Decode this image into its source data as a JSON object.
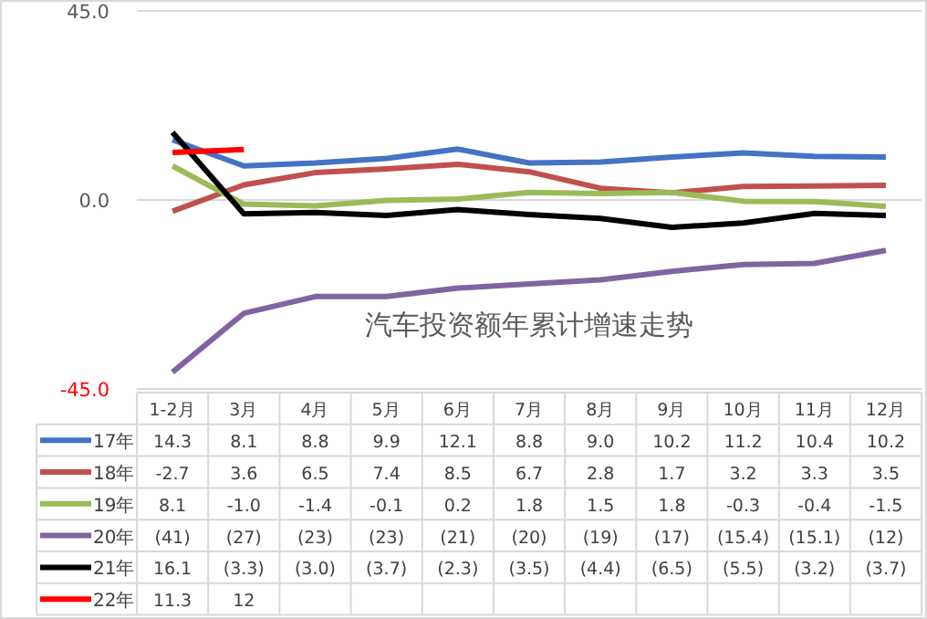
{
  "chart_data": {
    "type": "line",
    "title": "汽车投资额年累计增速走势",
    "categories": [
      "1-2月",
      "3月",
      "4月",
      "5月",
      "6月",
      "7月",
      "8月",
      "9月",
      "10月",
      "11月",
      "12月"
    ],
    "ylim": [
      -45,
      45
    ],
    "yticks": [
      {
        "value": 45,
        "label": "45.0"
      },
      {
        "value": 0,
        "label": "0.0"
      },
      {
        "value": -45,
        "label": "-45.0"
      }
    ],
    "grid": "y",
    "legend": "bottom",
    "series": [
      {
        "name": "17年",
        "color": "#4472c4",
        "values": [
          14.3,
          8.1,
          8.8,
          9.9,
          12.1,
          8.8,
          9.0,
          10.2,
          11.2,
          10.4,
          10.2
        ],
        "value_labels": [
          "14.3",
          "8.1",
          "8.8",
          "9.9",
          "12.1",
          "8.8",
          "9.0",
          "10.2",
          "11.2",
          "10.4",
          "10.2"
        ]
      },
      {
        "name": "18年",
        "color": "#c0504d",
        "values": [
          -2.7,
          3.6,
          6.5,
          7.4,
          8.5,
          6.7,
          2.8,
          1.7,
          3.2,
          3.3,
          3.5
        ],
        "value_labels": [
          "-2.7",
          "3.6",
          "6.5",
          "7.4",
          "8.5",
          "6.7",
          "2.8",
          "1.7",
          "3.2",
          "3.3",
          "3.5"
        ]
      },
      {
        "name": "19年",
        "color": "#9bbb59",
        "values": [
          8.1,
          -1.0,
          -1.4,
          -0.1,
          0.2,
          1.8,
          1.5,
          1.8,
          -0.3,
          -0.4,
          -1.5
        ],
        "value_labels": [
          "8.1",
          "-1.0",
          "-1.4",
          "-0.1",
          "0.2",
          "1.8",
          "1.5",
          "1.8",
          "-0.3",
          "-0.4",
          "-1.5"
        ]
      },
      {
        "name": "20年",
        "color": "#8064a2",
        "values": [
          -41,
          -27,
          -23,
          -23,
          -21,
          -20,
          -19,
          -17,
          -15.4,
          -15.1,
          -12
        ],
        "value_labels": [
          "(41)",
          "(27)",
          "(23)",
          "(23)",
          "(21)",
          "(20)",
          "(19)",
          "(17)",
          "(15.4)",
          "(15.1)",
          "(12)"
        ]
      },
      {
        "name": "21年",
        "color": "#000000",
        "values": [
          16.1,
          -3.3,
          -3.0,
          -3.7,
          -2.3,
          -3.5,
          -4.4,
          -6.5,
          -5.5,
          -3.2,
          -3.7
        ],
        "value_labels": [
          "16.1",
          "(3.3)",
          "(3.0)",
          "(3.7)",
          "(2.3)",
          "(3.5)",
          "(4.4)",
          "(6.5)",
          "(5.5)",
          "(3.2)",
          "(3.7)"
        ]
      },
      {
        "name": "22年",
        "color": "#ff0000",
        "values": [
          11.3,
          12,
          null,
          null,
          null,
          null,
          null,
          null,
          null,
          null,
          null
        ],
        "value_labels": [
          "11.3",
          "12",
          null,
          null,
          null,
          null,
          null,
          null,
          null,
          null,
          null
        ]
      }
    ]
  }
}
